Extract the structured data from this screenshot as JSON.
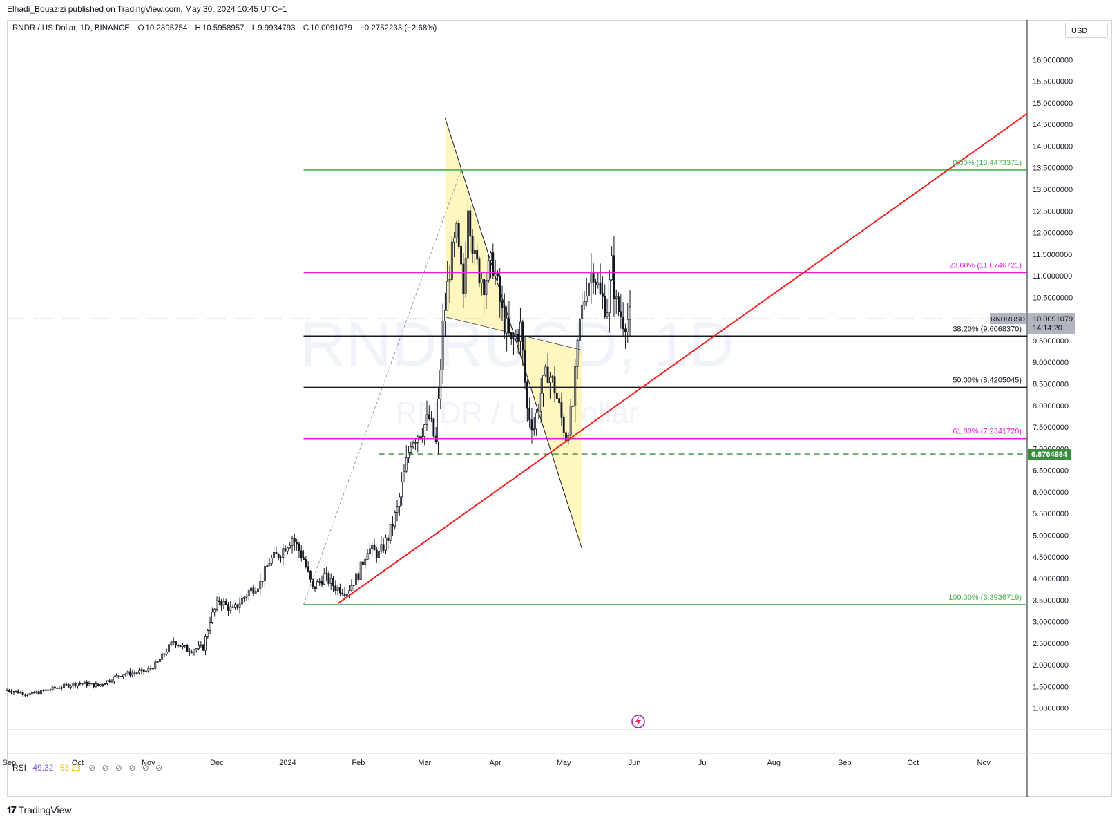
{
  "header": {
    "published_by": "Elhadi_Bouazizi published on TradingView.com, May 30, 2024 10:45 UTC+1"
  },
  "legend": {
    "symbol": "RNDR / US Dollar, 1D, BINANCE",
    "o_label": "O",
    "o_value": "10.2895754",
    "h_label": "H",
    "h_value": "10.5958957",
    "l_label": "L",
    "l_value": "9.9934793",
    "c_label": "C",
    "c_value": "10.0091079",
    "change": "−0.2752233 (−2.68%)"
  },
  "currency_button": "USD",
  "watermark": {
    "line1": "RNDRUSD, 1D",
    "line2": "RNDR / US Dollar"
  },
  "price_scale": {
    "last_label": "RNDRUSD",
    "last_value": "10.0091079",
    "countdown": "14:14:20",
    "level_label": "6.8764984"
  },
  "indicator": {
    "name": "RSI",
    "value1": "49.32",
    "value2": "53.23"
  },
  "footer": {
    "brand": "TradingView"
  },
  "colors": {
    "up": "#131722",
    "fib_green": "#4caf50",
    "fib_magenta": "#e91ee3",
    "fib_black": "#131722",
    "trendline": "#f01f1f",
    "channel_fill": "#fff5b5",
    "level_green": "#388e3c"
  },
  "chart_data": {
    "type": "candlestick",
    "title": "RNDR / US Dollar, 1D, BINANCE",
    "x_range": [
      "2023-08-31",
      "2024-11-20"
    ],
    "x_ticks": [
      "Sep",
      "Oct",
      "Nov",
      "Dec",
      "2024",
      "Feb",
      "Mar",
      "Apr",
      "May",
      "Jun",
      "Jul",
      "Aug",
      "Sep",
      "Oct",
      "Nov"
    ],
    "y_range": [
      0.5,
      16.5
    ],
    "y_ticks": [
      1.0,
      1.5,
      2.0,
      2.5,
      3.0,
      3.5,
      4.0,
      4.5,
      5.0,
      5.5,
      6.0,
      6.5,
      7.0,
      7.5,
      8.0,
      8.5,
      9.0,
      9.5,
      10.0,
      10.5,
      11.0,
      11.5,
      12.0,
      12.5,
      13.0,
      13.5,
      14.0,
      14.5,
      15.0,
      15.5,
      16.0
    ],
    "y_tick_format": 7,
    "last_close": 10.0091079,
    "price_path": [
      [
        "2023-08-31",
        1.42
      ],
      [
        "2023-09-10",
        1.32
      ],
      [
        "2023-09-20",
        1.45
      ],
      [
        "2023-10-01",
        1.58
      ],
      [
        "2023-10-10",
        1.52
      ],
      [
        "2023-10-20",
        1.78
      ],
      [
        "2023-10-31",
        1.85
      ],
      [
        "2023-11-05",
        2.05
      ],
      [
        "2023-11-12",
        2.55
      ],
      [
        "2023-11-18",
        2.35
      ],
      [
        "2023-11-25",
        2.4
      ],
      [
        "2023-11-28",
        3.05
      ],
      [
        "2023-12-02",
        3.5
      ],
      [
        "2023-12-08",
        3.25
      ],
      [
        "2023-12-15",
        3.7
      ],
      [
        "2023-12-20",
        3.9
      ],
      [
        "2023-12-24",
        4.4
      ],
      [
        "2023-12-28",
        4.55
      ],
      [
        "2024-01-03",
        4.95
      ],
      [
        "2024-01-08",
        4.45
      ],
      [
        "2024-01-12",
        3.75
      ],
      [
        "2024-01-17",
        4.05
      ],
      [
        "2024-01-22",
        3.8
      ],
      [
        "2024-01-27",
        3.7
      ],
      [
        "2024-02-01",
        4.1
      ],
      [
        "2024-02-05",
        4.7
      ],
      [
        "2024-02-10",
        4.55
      ],
      [
        "2024-02-14",
        4.95
      ],
      [
        "2024-02-18",
        5.6
      ],
      [
        "2024-02-21",
        6.4
      ],
      [
        "2024-02-24",
        7.2
      ],
      [
        "2024-02-28",
        7.4
      ],
      [
        "2024-03-03",
        7.7
      ],
      [
        "2024-03-06",
        7.1
      ],
      [
        "2024-03-09",
        9.8
      ],
      [
        "2024-03-12",
        11.2
      ],
      [
        "2024-03-15",
        11.9
      ],
      [
        "2024-03-18",
        10.6
      ],
      [
        "2024-03-20",
        12.8
      ],
      [
        "2024-03-23",
        11.3
      ],
      [
        "2024-03-27",
        10.9
      ],
      [
        "2024-03-31",
        11.3
      ],
      [
        "2024-04-04",
        10.1
      ],
      [
        "2024-04-08",
        9.4
      ],
      [
        "2024-04-12",
        9.8
      ],
      [
        "2024-04-15",
        7.9
      ],
      [
        "2024-04-18",
        7.5
      ],
      [
        "2024-04-21",
        8.3
      ],
      [
        "2024-04-24",
        8.8
      ],
      [
        "2024-04-27",
        8.4
      ],
      [
        "2024-04-30",
        7.7
      ],
      [
        "2024-05-02",
        7.3
      ],
      [
        "2024-05-05",
        8.0
      ],
      [
        "2024-05-08",
        9.9
      ],
      [
        "2024-05-11",
        10.8
      ],
      [
        "2024-05-14",
        11.2
      ],
      [
        "2024-05-17",
        10.5
      ],
      [
        "2024-05-20",
        10.3
      ],
      [
        "2024-05-22",
        11.2
      ],
      [
        "2024-05-24",
        10.3
      ],
      [
        "2024-05-27",
        10.0
      ],
      [
        "2024-05-30",
        10.01
      ]
    ],
    "fib_levels": [
      {
        "label": "0.00% (13.4473371)",
        "value": 13.4473371,
        "color": "#4caf50"
      },
      {
        "label": "23.60% (11.0746721)",
        "value": 11.0746721,
        "color": "#e91ee3"
      },
      {
        "label": "38.20% (9.6068370)",
        "value": 9.606837,
        "color": "#131722"
      },
      {
        "label": "50.00% (8.4205045)",
        "value": 8.4205045,
        "color": "#131722"
      },
      {
        "label": "61.80% (7.2341720)",
        "value": 7.234172,
        "color": "#e91ee3"
      },
      {
        "label": "100.00% (3.3936719)",
        "value": 3.3936719,
        "color": "#4caf50"
      }
    ],
    "fib_start": "2024-01-08",
    "fib_anchor": [
      [
        "2024-01-08",
        3.3936719
      ],
      [
        "2024-03-17",
        13.4473371
      ]
    ],
    "trendline": [
      [
        "2024-01-23",
        3.42
      ],
      [
        "2024-11-20",
        14.75
      ]
    ],
    "channel": {
      "upper": [
        [
          "2024-03-10",
          14.65
        ],
        [
          "2024-05-09",
          4.68
        ]
      ],
      "lower_offset": -4.6
    },
    "horizontal_level": {
      "value": 6.8764984,
      "from": "2024-02-10"
    },
    "rsi": {
      "value": 49.32,
      "ma": 53.23
    }
  }
}
